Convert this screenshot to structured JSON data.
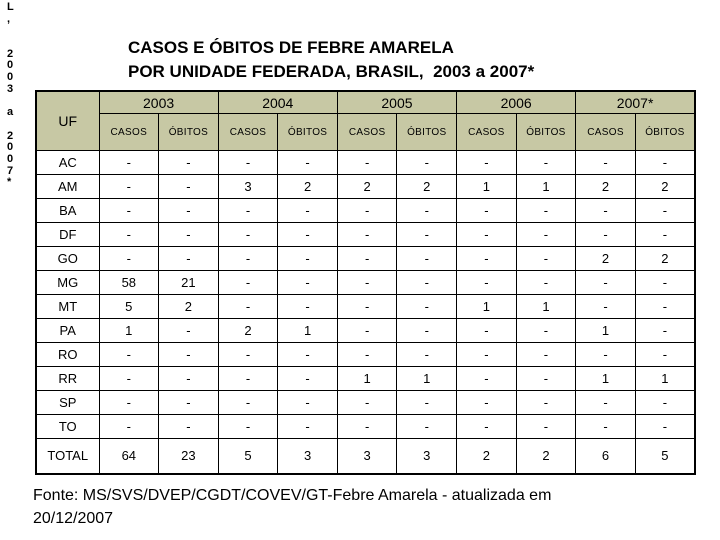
{
  "left_margin": {
    "chars": [
      "L",
      ",",
      "",
      "",
      "2",
      "0",
      "0",
      "3",
      "",
      "a",
      "",
      "2",
      "0",
      "0",
      "7",
      "*"
    ]
  },
  "title": {
    "line1": "CASOS E ÓBITOS DE FEBRE AMARELA",
    "line2": "POR UNIDADE FEDERADA, BRASIL,  2003 a 2007*"
  },
  "table": {
    "corner_header": "UF",
    "year_headers": [
      "2003",
      "2004",
      "2005",
      "2006",
      "2007*"
    ],
    "sub_headers": [
      "CASOS",
      "ÓBITOS"
    ],
    "rows": [
      {
        "uf": "AC",
        "values": [
          "-",
          "-",
          "-",
          "-",
          "-",
          "-",
          "-",
          "-",
          "-",
          "-"
        ]
      },
      {
        "uf": "AM",
        "values": [
          "-",
          "-",
          "3",
          "2",
          "2",
          "2",
          "1",
          "1",
          "2",
          "2"
        ]
      },
      {
        "uf": "BA",
        "values": [
          "-",
          "-",
          "-",
          "-",
          "-",
          "-",
          "-",
          "-",
          "-",
          "-"
        ]
      },
      {
        "uf": "DF",
        "values": [
          "-",
          "-",
          "-",
          "-",
          "-",
          "-",
          "-",
          "-",
          "-",
          "-"
        ]
      },
      {
        "uf": "GO",
        "values": [
          "-",
          "-",
          "-",
          "-",
          "-",
          "-",
          "-",
          "-",
          "2",
          "2"
        ]
      },
      {
        "uf": "MG",
        "values": [
          "58",
          "21",
          "-",
          "-",
          "-",
          "-",
          "-",
          "-",
          "-",
          "-"
        ]
      },
      {
        "uf": "MT",
        "values": [
          "5",
          "2",
          "-",
          "-",
          "-",
          "-",
          "1",
          "1",
          "-",
          "-"
        ]
      },
      {
        "uf": "PA",
        "values": [
          "1",
          "-",
          "2",
          "1",
          "-",
          "-",
          "-",
          "-",
          "1",
          "-"
        ]
      },
      {
        "uf": "RO",
        "values": [
          "-",
          "-",
          "-",
          "-",
          "-",
          "-",
          "-",
          "-",
          "-",
          "-"
        ]
      },
      {
        "uf": "RR",
        "values": [
          "-",
          "-",
          "-",
          "-",
          "1",
          "1",
          "-",
          "-",
          "1",
          "1"
        ]
      },
      {
        "uf": "SP",
        "values": [
          "-",
          "-",
          "-",
          "-",
          "-",
          "-",
          "-",
          "-",
          "-",
          "-"
        ]
      },
      {
        "uf": "TO",
        "values": [
          "-",
          "-",
          "-",
          "-",
          "-",
          "-",
          "-",
          "-",
          "-",
          "-"
        ]
      },
      {
        "uf": "TOTAL",
        "values": [
          "64",
          "23",
          "5",
          "3",
          "3",
          "3",
          "2",
          "2",
          "6",
          "5"
        ]
      }
    ]
  },
  "footer": {
    "line1": "Fonte: MS/SVS/DVEP/CGDT/COVEV/GT-Febre Amarela - atualizada em",
    "line2": "20/12/2007"
  },
  "colors": {
    "header_bg": "#C7C8A4",
    "border": "#000000",
    "title_color": "#000000"
  }
}
